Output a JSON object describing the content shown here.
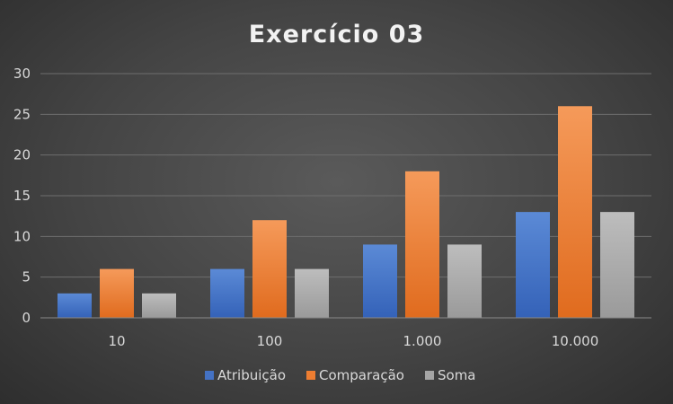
{
  "chart_data": {
    "type": "bar",
    "title": "Exercício 03",
    "xlabel": "",
    "ylabel": "",
    "categories": [
      "10",
      "100",
      "1.000",
      "10.000"
    ],
    "series": [
      {
        "name": "Atribuição",
        "values": [
          3,
          6,
          9,
          13
        ],
        "color": "#4472c4"
      },
      {
        "name": "Comparação",
        "values": [
          6,
          12,
          18,
          26
        ],
        "color": "#ed7d31"
      },
      {
        "name": "Soma",
        "values": [
          3,
          6,
          9,
          13
        ],
        "color": "#a5a5a5"
      }
    ],
    "ylim": [
      0,
      30
    ],
    "yticks": [
      "0",
      "5",
      "10",
      "15",
      "20",
      "25",
      "30"
    ],
    "grid": true,
    "legend_position": "bottom"
  }
}
